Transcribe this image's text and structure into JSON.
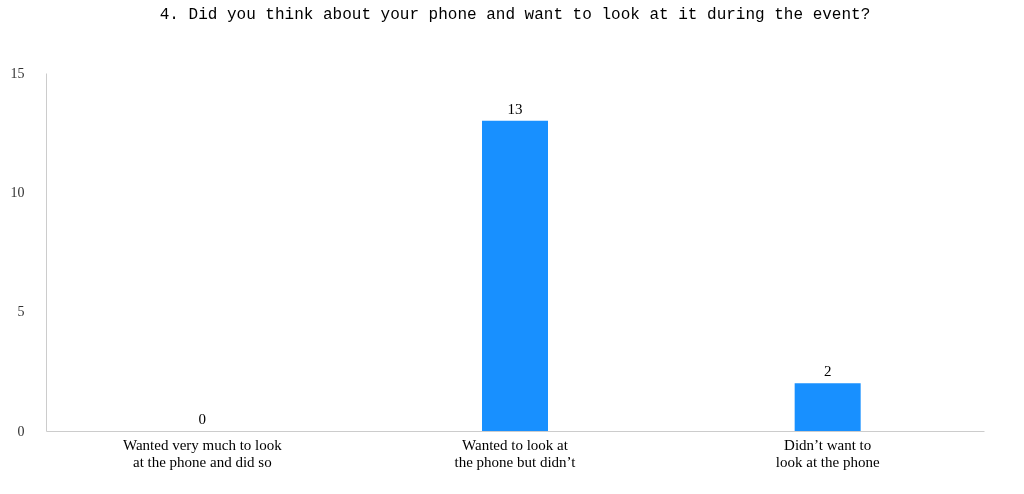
{
  "chart_data": {
    "type": "bar",
    "title": "4. Did you think about your phone and want to look at it during the event?",
    "categories": [
      "Wanted very much to look at the phone and did so",
      "Wanted to look at the phone but didn’t",
      "Didn’t want to look at the phone"
    ],
    "values": [
      0,
      13,
      2
    ],
    "color": "#1890ff",
    "ylim": [
      0,
      15
    ],
    "yticks": [
      0,
      5,
      10,
      15
    ],
    "grid": false,
    "data_labels": true
  }
}
